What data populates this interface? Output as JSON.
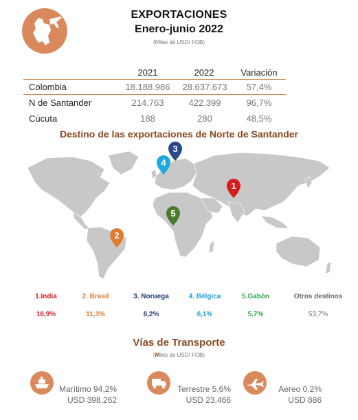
{
  "header": {
    "title": "EXPORTACIONES",
    "subtitle": "Enero-junio 2022",
    "units": "(Miles de USD/ FOB)"
  },
  "table": {
    "columns": [
      "2021",
      "2022",
      "Variación"
    ],
    "rows": [
      {
        "name": "Colombia",
        "v2021": "18.188.986",
        "v2022": "28.637.673",
        "var": "57,4%"
      },
      {
        "name": "N de Santander",
        "v2021": "214.763",
        "v2022": "422.399",
        "var": "96,7%"
      },
      {
        "name": "Cúcuta",
        "v2021": "188",
        "v2022": "280",
        "var": "48,5%"
      }
    ]
  },
  "destinations": {
    "title": "Destino de las exportaciones de Norte de Santander",
    "items": [
      {
        "label": "1.India",
        "pct": "16,9%",
        "color": "#d62020",
        "marker": "1"
      },
      {
        "label": "2. Brasil",
        "pct": "11,3%",
        "color": "#e07b30",
        "marker": "2"
      },
      {
        "label": "3. Noruega",
        "pct": "6,2%",
        "color": "#1f3a7a",
        "marker": "3"
      },
      {
        "label": "4. Bélgica",
        "pct": "6,1%",
        "color": "#1aa3d9",
        "marker": "4"
      },
      {
        "label": "5.Gabón",
        "pct": "5,7%",
        "color": "#2ea84a",
        "marker": "5"
      },
      {
        "label": "Otros destinos",
        "pct": "53,7%",
        "color": "#666666",
        "marker": ""
      }
    ],
    "marker_colors": {
      "india": "#d41d1d",
      "brasil": "#e07b30",
      "noruega": "#2a4a8a",
      "belgica": "#1fa8dc",
      "gabon": "#4a7a2a"
    }
  },
  "transport": {
    "title": "Vías de Transporte",
    "units_prefix": "(",
    "units_bold": "M",
    "units_rest": "iles de USD/ FOB)",
    "items": [
      {
        "mode": "Marítimo 94,2%",
        "value": "USD 398.262",
        "icon": "ship-icon"
      },
      {
        "mode": "Terrestre 5,6%",
        "value": "USD 23.466",
        "icon": "truck-icon"
      },
      {
        "mode": "Aéreo 0,2%",
        "value": "USD 886",
        "icon": "airplane-icon"
      }
    ]
  },
  "colors": {
    "accent": "#d9895b",
    "title_brown": "#8b4a22",
    "map_gray": "#c8c8c8"
  }
}
